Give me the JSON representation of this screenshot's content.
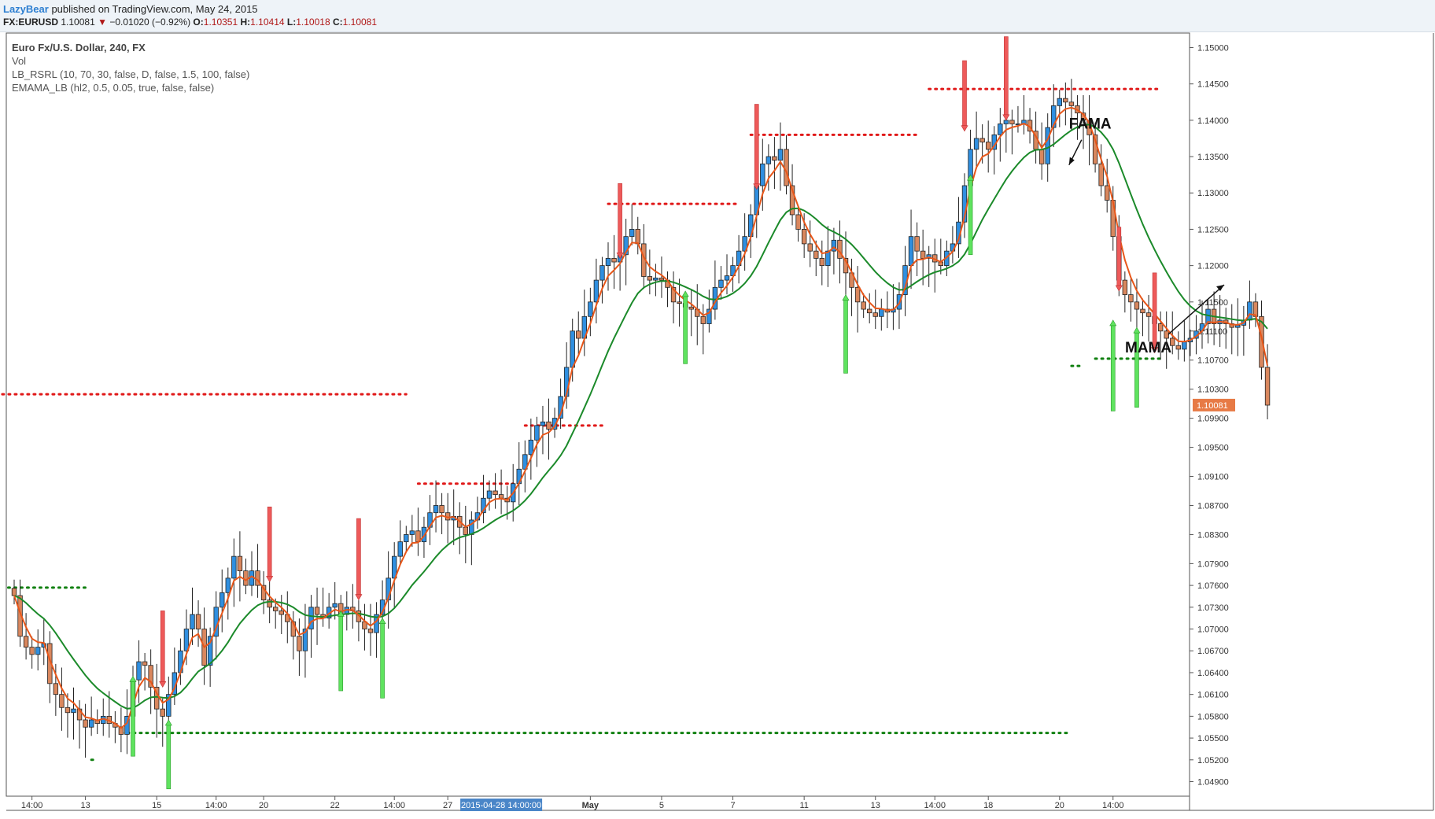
{
  "header": {
    "author": "LazyBear",
    "published": "published on TradingView.com, May 24, 2015",
    "symbol": "FX:EURUSD",
    "last": "1.10081",
    "change": "−0.01020 (−0.92%)",
    "o_label": "O:",
    "o_value": "1.10351",
    "h_label": "H:",
    "h_value": "1.10414",
    "l_label": "L:",
    "l_value": "1.10018",
    "c_label": "C:",
    "c_value": "1.10081"
  },
  "legend": {
    "title": "Euro Fx/U.S. Dollar, 240, FX",
    "lines": [
      "Vol",
      "LB_RSRL (10, 70, 30, false, D, false, 1.5, 100, false)",
      "EMAMA_LB (hl2, 0.5, 0.05, true, false, false)"
    ]
  },
  "chart_data": {
    "type": "candlestick",
    "title": "Euro Fx/U.S. Dollar, 240, FX",
    "ylim": [
      1.047,
      1.152
    ],
    "y_ticks": [
      "1.15000",
      "1.14500",
      "1.14000",
      "1.13500",
      "1.13000",
      "1.12500",
      "1.12000",
      "1.11500",
      "1.11100",
      "1.10700",
      "1.10300",
      "1.09900",
      "1.09500",
      "1.09100",
      "1.08700",
      "1.08300",
      "1.07900",
      "1.07600",
      "1.07300",
      "1.07000",
      "1.06700",
      "1.06400",
      "1.06100",
      "1.05800",
      "1.05500",
      "1.05200",
      "1.04900"
    ],
    "x_ticks": [
      {
        "label": "14:00",
        "i": 3
      },
      {
        "label": "13",
        "i": 12
      },
      {
        "label": "15",
        "i": 24
      },
      {
        "label": "14:00",
        "i": 34
      },
      {
        "label": "20",
        "i": 42
      },
      {
        "label": "22",
        "i": 54
      },
      {
        "label": "14:00",
        "i": 64
      },
      {
        "label": "27",
        "i": 73
      },
      {
        "label": "May",
        "i": 97
      },
      {
        "label": "5",
        "i": 109
      },
      {
        "label": "7",
        "i": 121
      },
      {
        "label": "11",
        "i": 133
      },
      {
        "label": "13",
        "i": 145
      },
      {
        "label": "14:00",
        "i": 155
      },
      {
        "label": "18",
        "i": 164
      },
      {
        "label": "20",
        "i": 176
      },
      {
        "label": "14:00",
        "i": 185
      }
    ],
    "crosshair_label": "2015-04-28 14:00:00",
    "crosshair_index": 82,
    "last_price": "1.10081",
    "closes": [
      1.0746,
      1.069,
      1.0675,
      1.0665,
      1.0675,
      1.068,
      1.0625,
      1.061,
      1.0592,
      1.0585,
      1.059,
      1.0575,
      1.0565,
      1.0575,
      1.057,
      1.058,
      1.057,
      1.0565,
      1.0555,
      1.058,
      1.063,
      1.0655,
      1.065,
      1.062,
      1.059,
      1.058,
      1.061,
      1.064,
      1.067,
      1.07,
      1.072,
      1.07,
      1.065,
      1.069,
      1.073,
      1.075,
      1.077,
      1.08,
      1.078,
      1.076,
      1.078,
      1.076,
      1.074,
      1.073,
      1.0725,
      1.072,
      1.071,
      1.069,
      1.067,
      1.07,
      1.073,
      1.072,
      1.0715,
      1.073,
      1.0735,
      1.072,
      1.073,
      1.0725,
      1.071,
      1.07,
      1.0695,
      1.072,
      1.074,
      1.077,
      1.08,
      1.082,
      1.083,
      1.0835,
      1.082,
      1.084,
      1.086,
      1.087,
      1.086,
      1.085,
      1.0855,
      1.084,
      1.083,
      1.085,
      1.086,
      1.088,
      1.089,
      1.0885,
      1.088,
      1.0875,
      1.09,
      1.092,
      1.094,
      1.096,
      1.098,
      1.0985,
      1.0975,
      1.099,
      1.102,
      1.106,
      1.111,
      1.11,
      1.113,
      1.115,
      1.118,
      1.12,
      1.121,
      1.1205,
      1.1215,
      1.124,
      1.125,
      1.123,
      1.1185,
      1.118,
      1.1183,
      1.118,
      1.117,
      1.115,
      1.1148,
      1.1143,
      1.114,
      1.113,
      1.112,
      1.114,
      1.117,
      1.118,
      1.1186,
      1.12,
      1.122,
      1.124,
      1.127,
      1.131,
      1.134,
      1.135,
      1.1345,
      1.136,
      1.131,
      1.127,
      1.125,
      1.123,
      1.122,
      1.121,
      1.12,
      1.122,
      1.1235,
      1.121,
      1.119,
      1.117,
      1.115,
      1.114,
      1.1135,
      1.113,
      1.114,
      1.1136,
      1.114,
      1.116,
      1.12,
      1.124,
      1.122,
      1.121,
      1.1215,
      1.1205,
      1.12,
      1.122,
      1.123,
      1.126,
      1.131,
      1.136,
      1.1375,
      1.137,
      1.136,
      1.138,
      1.1395,
      1.14,
      1.1395,
      1.1395,
      1.14,
      1.1385,
      1.136,
      1.134,
      1.139,
      1.142,
      1.143,
      1.1425,
      1.142,
      1.141,
      1.14,
      1.138,
      1.134,
      1.131,
      1.129,
      1.124,
      1.118,
      1.116,
      1.115,
      1.114,
      1.1135,
      1.113,
      1.112,
      1.111,
      1.11,
      1.109,
      1.1085,
      1.1095,
      1.11,
      1.111,
      1.112,
      1.114,
      1.112,
      1.1125,
      1.112,
      1.1115,
      1.1118,
      1.1125,
      1.115,
      1.113,
      1.106,
      1.1008
    ],
    "resistance_levels": [
      {
        "price": 1.1023,
        "from": -2,
        "to": 66
      },
      {
        "price": 1.098,
        "from": 86,
        "to": 99
      },
      {
        "price": 1.09,
        "from": 68,
        "to": 84
      },
      {
        "price": 1.1285,
        "from": 100,
        "to": 122
      },
      {
        "price": 1.138,
        "from": 124,
        "to": 152
      },
      {
        "price": 1.1443,
        "from": 154,
        "to": 193
      }
    ],
    "support_levels": [
      {
        "price": 1.0757,
        "from": -1,
        "to": 12
      },
      {
        "price": 1.052,
        "from": 13,
        "to": 14
      },
      {
        "price": 1.0557,
        "from": 18,
        "to": 178
      },
      {
        "price": 1.1062,
        "from": 178,
        "to": 180
      },
      {
        "price": 1.1072,
        "from": 182,
        "to": 193
      }
    ],
    "sell_signals": [
      {
        "i": 25,
        "top": 1.0725,
        "bottom": 1.062
      },
      {
        "i": 43,
        "top": 1.0868,
        "bottom": 1.0765
      },
      {
        "i": 58,
        "top": 1.0852,
        "bottom": 1.074
      },
      {
        "i": 102,
        "top": 1.1313,
        "bottom": 1.121
      },
      {
        "i": 125,
        "top": 1.1422,
        "bottom": 1.1305
      },
      {
        "i": 160,
        "top": 1.1482,
        "bottom": 1.1385
      },
      {
        "i": 167,
        "top": 1.1515,
        "bottom": 1.14
      },
      {
        "i": 186,
        "top": 1.1253,
        "bottom": 1.1165
      },
      {
        "i": 192,
        "top": 1.119,
        "bottom": 1.108
      }
    ],
    "buy_signals": [
      {
        "i": 20,
        "top": 1.0635,
        "bottom": 1.0525
      },
      {
        "i": 26,
        "top": 1.0575,
        "bottom": 1.048
      },
      {
        "i": 55,
        "top": 1.0725,
        "bottom": 1.0615
      },
      {
        "i": 62,
        "top": 1.0715,
        "bottom": 1.0605
      },
      {
        "i": 113,
        "top": 1.1165,
        "bottom": 1.1065
      },
      {
        "i": 140,
        "top": 1.116,
        "bottom": 1.1052
      },
      {
        "i": 161,
        "top": 1.1325,
        "bottom": 1.1215
      },
      {
        "i": 185,
        "top": 1.1125,
        "bottom": 1.1
      },
      {
        "i": 189,
        "top": 1.1115,
        "bottom": 1.1005
      }
    ],
    "series_lines": [
      {
        "name": "MAMA",
        "color": "#e8571a"
      },
      {
        "name": "FAMA",
        "color": "#1b8a2a"
      }
    ],
    "annotations": [
      {
        "text": "FAMA",
        "at_i": 176,
        "at_price": 1.1345
      },
      {
        "text": "MAMA",
        "at_i": 161,
        "at_price": 1.1065
      }
    ],
    "colors": {
      "up": "#2f8fe0",
      "down": "#d9875e",
      "sell": "#ee5a5a",
      "buy": "#5fe35f",
      "resistance": "#e01818",
      "support": "#108010",
      "price_tag": "#e77a45"
    }
  }
}
